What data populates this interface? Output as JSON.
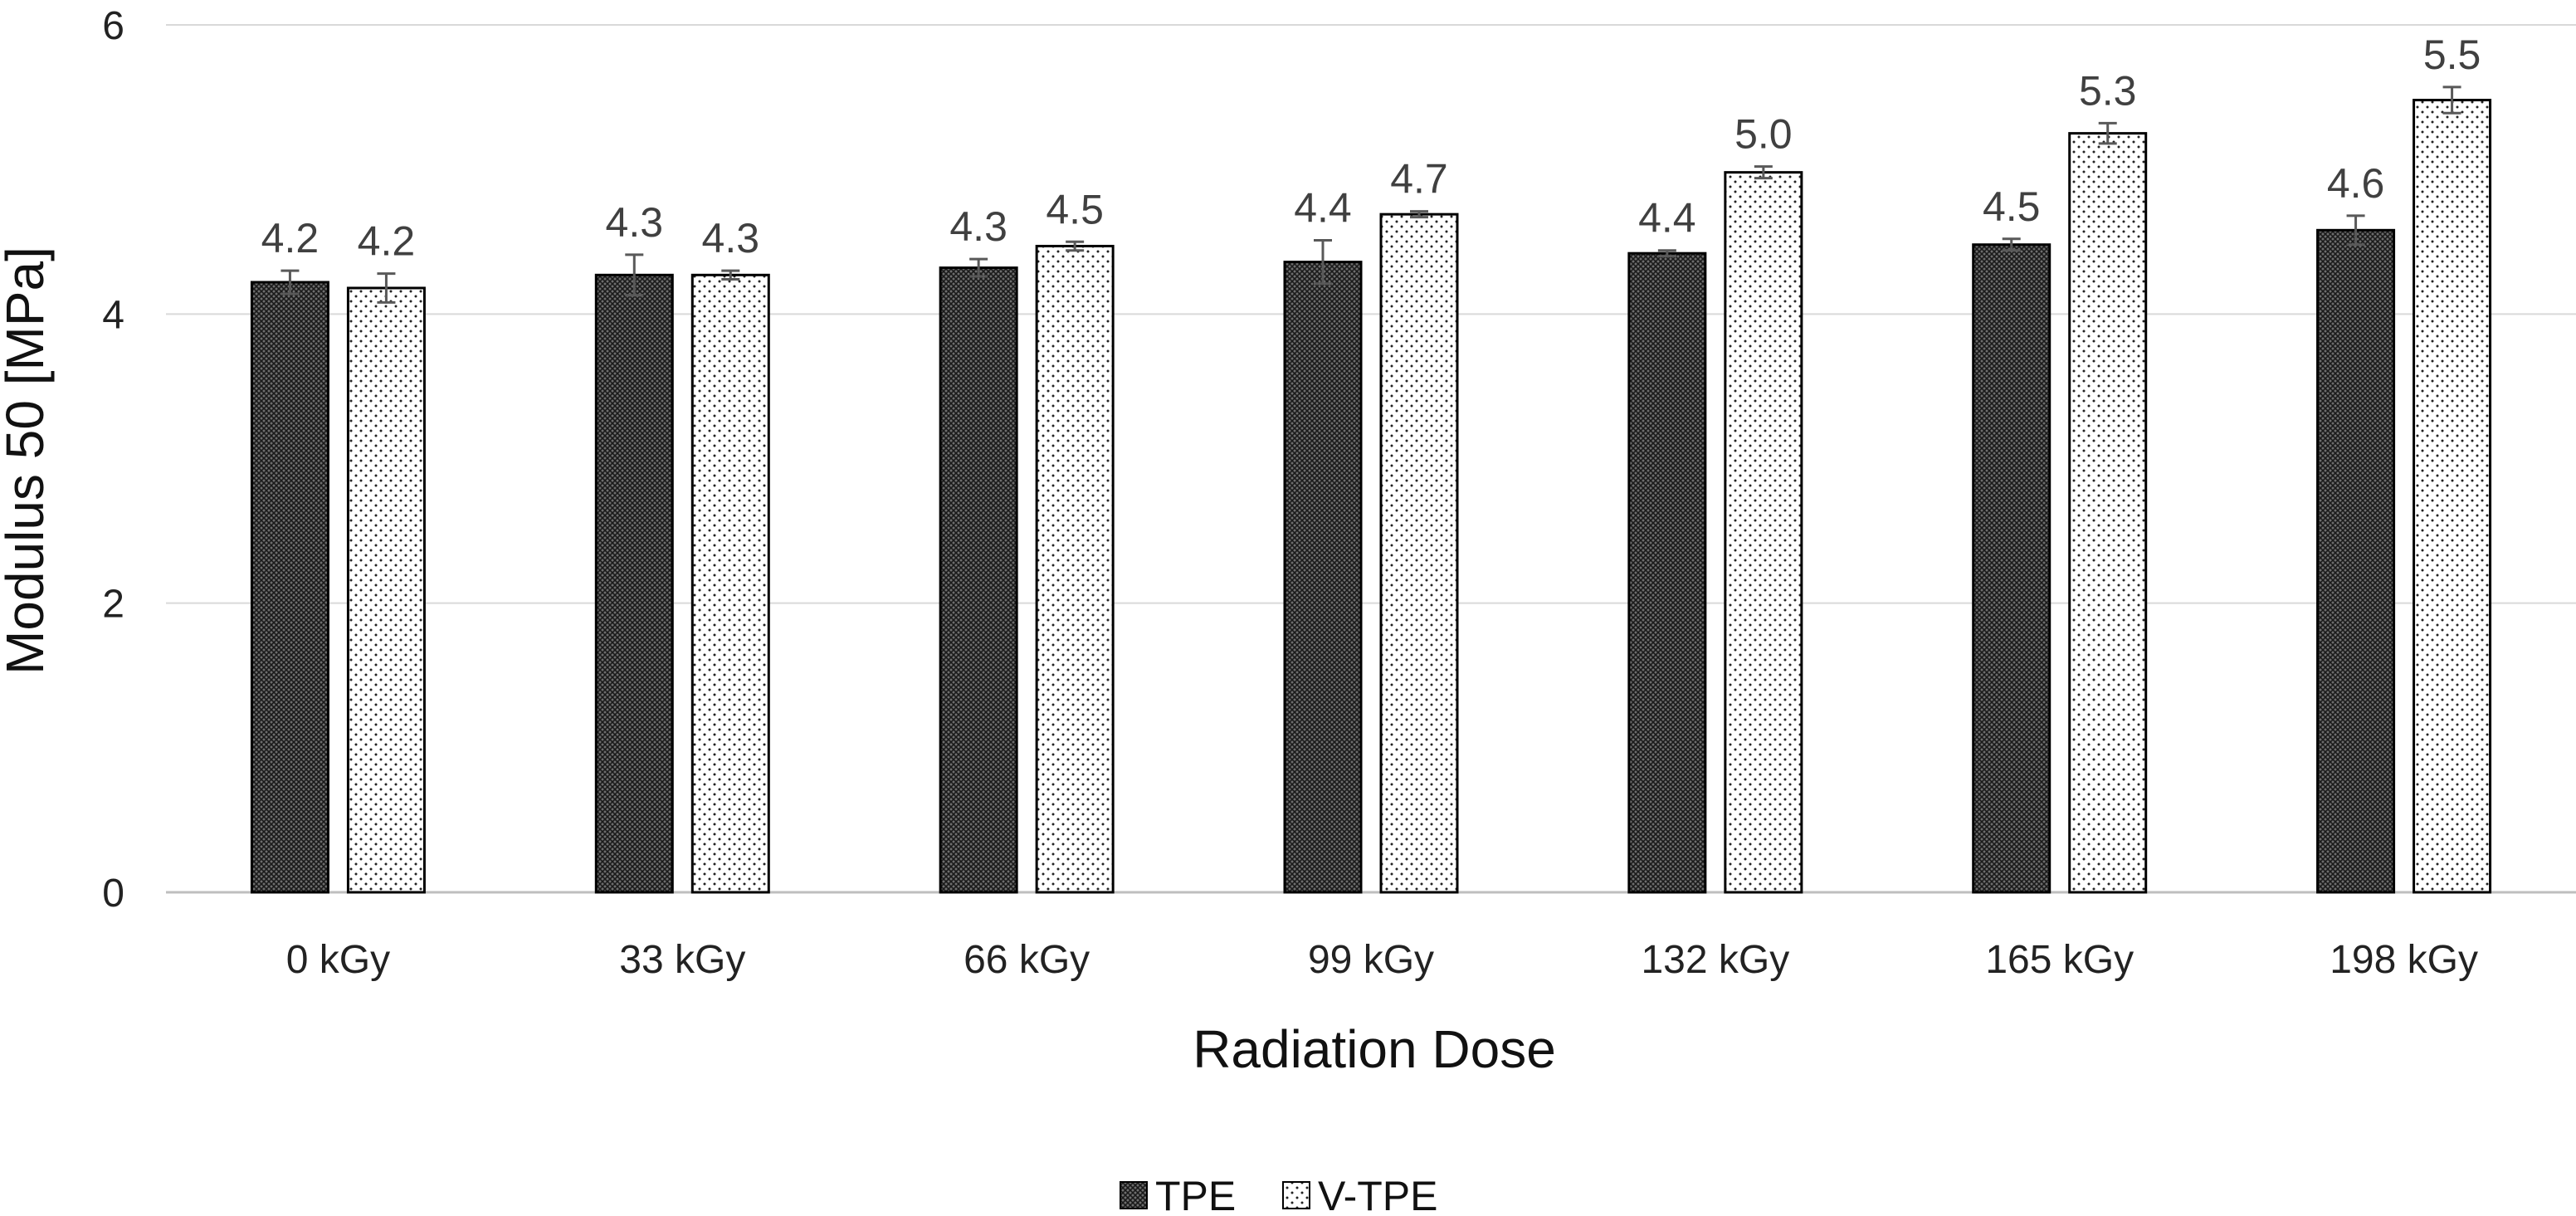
{
  "chart_data": {
    "type": "bar",
    "title": "",
    "xlabel": "Radiation Dose",
    "ylabel": "Modulus 50 [MPa]",
    "categories": [
      "0 kGy",
      "33 kGy",
      "66 kGy",
      "99 kGy",
      "132 kGy",
      "165 kGy",
      "198 kGy"
    ],
    "ylim": [
      0,
      6
    ],
    "yticks": [
      0,
      2,
      4,
      6
    ],
    "ytick_labels": [
      "0",
      "2",
      "4",
      "6"
    ],
    "grid": "horizontal",
    "legend_position": "bottom-center",
    "series": [
      {
        "name": "TPE",
        "pattern": "crosshatch-dark",
        "values": [
          4.22,
          4.27,
          4.32,
          4.36,
          4.42,
          4.48,
          4.58
        ],
        "errors": [
          0.08,
          0.14,
          0.06,
          0.15,
          0.02,
          0.04,
          0.1
        ],
        "labels": [
          "4.2",
          "4.3",
          "4.3",
          "4.4",
          "4.4",
          "4.5",
          "4.6"
        ]
      },
      {
        "name": "V-TPE",
        "pattern": "dotted-light",
        "values": [
          4.18,
          4.27,
          4.47,
          4.69,
          4.98,
          5.25,
          5.48
        ],
        "errors": [
          0.1,
          0.03,
          0.03,
          0.02,
          0.04,
          0.07,
          0.09
        ],
        "labels": [
          "4.2",
          "4.3",
          "4.5",
          "4.7",
          "5.0",
          "5.3",
          "5.5"
        ]
      }
    ],
    "colors": {
      "grid": "#d9d9d9",
      "axis": "#bfbfbf",
      "bar_outline": "#000000",
      "error_bar": "#595959"
    }
  }
}
